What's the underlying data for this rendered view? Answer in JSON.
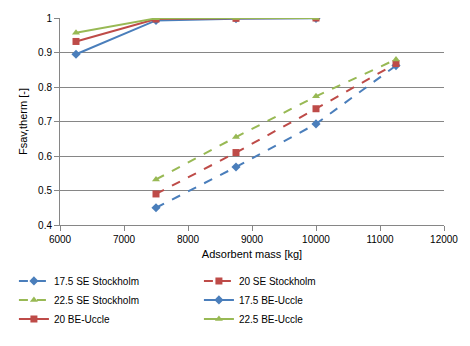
{
  "chart_data": {
    "type": "line",
    "x_label": "Adsorbent mass [kg]",
    "y_label": "Fsav,therm [-]",
    "xlim": [
      6000,
      12000
    ],
    "xticks": [
      6000,
      7000,
      8000,
      9000,
      10000,
      11000,
      12000
    ],
    "ylim": [
      0.4,
      1
    ],
    "yticks": [
      0.4,
      0.5,
      0.6,
      0.7,
      0.8,
      0.9,
      1
    ],
    "grid": true,
    "legend": "bottom",
    "series": [
      {
        "name": "17.5 SE Stockholm",
        "color": "#4a7ebb",
        "marker": "diamond",
        "line_style": "dash",
        "x": [
          7500,
          8750,
          10000,
          11250
        ],
        "values": [
          0.45,
          0.568,
          0.693,
          0.862
        ]
      },
      {
        "name": "20 SE Stockholm",
        "color": "#be4b48",
        "marker": "square",
        "line_style": "dash",
        "x": [
          7500,
          8750,
          10000,
          11250
        ],
        "values": [
          0.49,
          0.61,
          0.737,
          0.868
        ]
      },
      {
        "name": "22.5 SE Stockholm",
        "color": "#98b954",
        "marker": "triangle-up",
        "line_style": "dash",
        "x": [
          7500,
          8750,
          10000,
          11250
        ],
        "values": [
          0.532,
          0.655,
          0.773,
          0.88
        ]
      },
      {
        "name": "17.5 BE-Uccle",
        "color": "#4a7ebb",
        "marker": "diamond",
        "line_style": "solid",
        "x": [
          6250,
          7500,
          8750,
          10000
        ],
        "values": [
          0.895,
          0.993,
          0.998,
          0.999
        ]
      },
      {
        "name": "20 BE-Uccle",
        "color": "#be4b48",
        "marker": "square",
        "line_style": "solid",
        "x": [
          6250,
          7500,
          8750,
          10000
        ],
        "values": [
          0.932,
          0.997,
          0.999,
          1
        ]
      },
      {
        "name": "22.5 BE-Uccle",
        "color": "#98b954",
        "marker": "triangle-up",
        "line_style": "solid",
        "x": [
          6250,
          7500,
          8750,
          10000
        ],
        "values": [
          0.957,
          0.999,
          1,
          1
        ]
      }
    ]
  }
}
